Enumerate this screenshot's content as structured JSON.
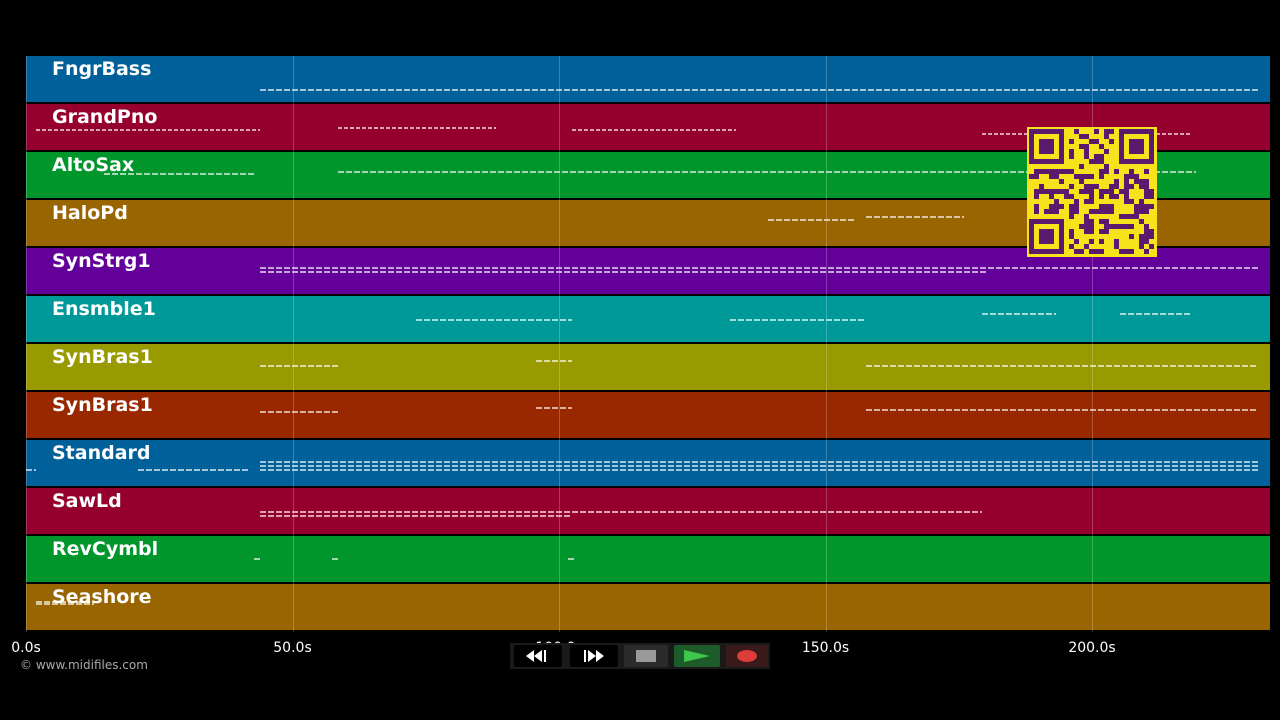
{
  "tracks": [
    {
      "name": "FngrBass",
      "color": "#00609a"
    },
    {
      "name": "GrandPno",
      "color": "#95002f"
    },
    {
      "name": "AltoSax",
      "color": "#00962c"
    },
    {
      "name": "HaloPd",
      "color": "#996500"
    },
    {
      "name": "SynStrg1",
      "color": "#64009a"
    },
    {
      "name": "Ensmble1",
      "color": "#00999a"
    },
    {
      "name": "SynBras1",
      "color": "#999900"
    },
    {
      "name": "SynBras1",
      "color": "#992800"
    },
    {
      "name": "Standard",
      "color": "#00609a"
    },
    {
      "name": "SawLd",
      "color": "#95002f"
    },
    {
      "name": "RevCymbl",
      "color": "#00962c"
    },
    {
      "name": "Seashore",
      "color": "#996500"
    }
  ],
  "timeline": {
    "ticks": [
      "0.0s",
      "50.0s",
      "100.0s",
      "150.0s",
      "200.0s"
    ],
    "seconds_per_tick": 50
  },
  "copyright": "© www.midifiles.com",
  "transport": {
    "rewind_icon": "rewind-icon",
    "fastforward_icon": "fast-forward-icon",
    "stop_icon": "stop-icon",
    "play_icon": "play-icon",
    "record_icon": "record-icon"
  },
  "qr_icon": "qr-code-icon"
}
